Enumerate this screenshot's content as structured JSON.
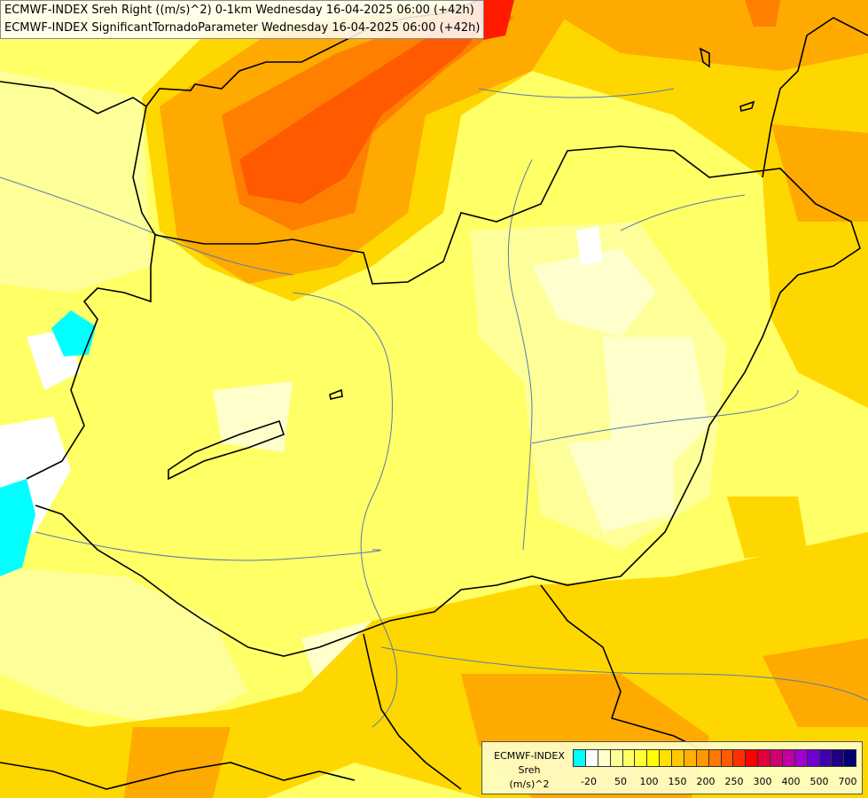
{
  "titles": {
    "line1": "ECMWF-INDEX Sreh Right ((m/s)^2) 0-1km Wednesday 16-04-2025 06:00 (+42h)",
    "line2": "ECMWF-INDEX SignificantTornadoParameter Wednesday 16-04-2025 06:00 (+42h)"
  },
  "legend": {
    "line1": "ECMWF-INDEX",
    "line2": "Sreh",
    "line3": "(m/s)^2",
    "swatch_colors": [
      "#00ffff",
      "#ffffff",
      "#ffffcc",
      "#ffff99",
      "#ffff66",
      "#ffff33",
      "#ffff00",
      "#ffe000",
      "#ffc800",
      "#ffb000",
      "#ff9800",
      "#ff7800",
      "#ff5a00",
      "#ff3000",
      "#ff0000",
      "#e0003a",
      "#d00070",
      "#c000a0",
      "#a000d0",
      "#7000d0",
      "#4000b0",
      "#200080",
      "#000070"
    ],
    "labels": [
      "-20",
      "50",
      "100",
      "150",
      "200",
      "250",
      "300",
      "400",
      "500",
      "700"
    ]
  },
  "colors": {
    "cyan": "#00ffff",
    "pale": "#ffffcc",
    "light_yellow": "#ffff99",
    "yellow": "#ffff66",
    "gold": "#ffd700",
    "orange": "#ffaa00",
    "dark_orange": "#ff8000",
    "red_orange": "#ff5a00",
    "red": "#ff1a00"
  }
}
